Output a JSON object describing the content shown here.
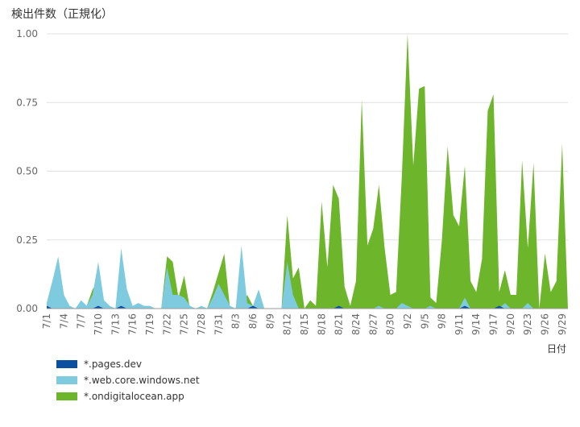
{
  "chart_data": {
    "type": "area",
    "title": "検出件数（正規化）",
    "x_label": "日付",
    "categories": [
      "7/1",
      null,
      null,
      "7/4",
      null,
      null,
      "7/7",
      null,
      null,
      "7/10",
      null,
      null,
      "7/13",
      null,
      null,
      "7/16",
      null,
      null,
      "7/19",
      null,
      null,
      "7/22",
      null,
      null,
      "7/25",
      null,
      null,
      "7/28",
      null,
      null,
      "7/31",
      null,
      null,
      "8/3",
      null,
      null,
      "8/6",
      null,
      null,
      "8/9",
      null,
      null,
      "8/12",
      null,
      null,
      "8/15",
      null,
      null,
      "8/18",
      null,
      null,
      "8/21",
      null,
      null,
      "8/24",
      null,
      null,
      "8/27",
      null,
      null,
      "8/30",
      null,
      null,
      "9/2",
      null,
      null,
      "9/5",
      null,
      null,
      "9/8",
      null,
      null,
      "9/11",
      null,
      null,
      "9/14",
      null,
      null,
      "9/17",
      null,
      null,
      "9/20",
      null,
      null,
      "9/23",
      null,
      null,
      "9/26",
      null,
      null,
      "9/29",
      null
    ],
    "series": [
      {
        "name": "*.pages.dev",
        "color": "#0b4fa0",
        "values": [
          0.01,
          0,
          0,
          0,
          0,
          0,
          0,
          0,
          0,
          0.01,
          0,
          0,
          0,
          0.01,
          0,
          0,
          0,
          0,
          0,
          0,
          0,
          0,
          0,
          0,
          0,
          0,
          0,
          0,
          0,
          0,
          0,
          0,
          0,
          0,
          0,
          0,
          0.01,
          0,
          0,
          0,
          0,
          0,
          0,
          0,
          0,
          0,
          0,
          0,
          0,
          0,
          0,
          0.01,
          0,
          0,
          0,
          0,
          0,
          0,
          0,
          0,
          0,
          0,
          0,
          0,
          0,
          0,
          0,
          0,
          0,
          0,
          0,
          0,
          0,
          0.01,
          0,
          0,
          0,
          0,
          0,
          0.01,
          0,
          0,
          0,
          0,
          0,
          0,
          0,
          0,
          0,
          0,
          0,
          0
        ]
      },
      {
        "name": "*.web.core.windows.net",
        "color": "#7ecbe0",
        "values": [
          0.02,
          0.1,
          0.19,
          0.05,
          0.01,
          0,
          0.03,
          0.01,
          0.05,
          0.17,
          0.03,
          0.01,
          0,
          0.22,
          0.07,
          0.01,
          0.02,
          0.01,
          0.01,
          0,
          0,
          0.15,
          0.05,
          0.05,
          0.04,
          0.01,
          0,
          0.01,
          0,
          0.04,
          0.09,
          0.05,
          0.01,
          0,
          0.23,
          0.02,
          0.01,
          0.07,
          0,
          0,
          0,
          0,
          0.17,
          0.05,
          0,
          0,
          0,
          0,
          0,
          0,
          0,
          0,
          0,
          0,
          0,
          0,
          0,
          0,
          0.01,
          0,
          0,
          0,
          0.02,
          0.01,
          0,
          0,
          0,
          0.01,
          0,
          0,
          0,
          0,
          0,
          0.04,
          0,
          0,
          0,
          0,
          0,
          0,
          0.02,
          0,
          0,
          0,
          0.02,
          0,
          0,
          0,
          0,
          0,
          0,
          0
        ]
      },
      {
        "name": "*.ondigitalocean.app",
        "color": "#6db52b",
        "values": [
          0.02,
          0.1,
          0.18,
          0.05,
          0,
          0,
          0.02,
          0.01,
          0.07,
          0.1,
          0.02,
          0,
          0,
          0,
          0,
          0,
          0,
          0,
          0,
          0,
          0,
          0.19,
          0.17,
          0.04,
          0.12,
          0,
          0,
          0,
          0,
          0.06,
          0.13,
          0.2,
          0,
          0,
          0,
          0.05,
          0.01,
          0,
          0,
          0,
          0,
          0,
          0.34,
          0.11,
          0.15,
          0,
          0.03,
          0.01,
          0.39,
          0.15,
          0.45,
          0.4,
          0.08,
          0.01,
          0.1,
          0.76,
          0.23,
          0.29,
          0.45,
          0.22,
          0.05,
          0.06,
          0.48,
          1.0,
          0.52,
          0.8,
          0.81,
          0.04,
          0.02,
          0.25,
          0.59,
          0.34,
          0.3,
          0.52,
          0.1,
          0.06,
          0.18,
          0.72,
          0.78,
          0.06,
          0.14,
          0.05,
          0.05,
          0.54,
          0.22,
          0.53,
          0,
          0.2,
          0.06,
          0.1,
          0.6,
          0
        ]
      }
    ],
    "ylim": [
      0,
      1.0
    ],
    "yticks": [
      {
        "value": 0,
        "label": "0.00"
      },
      {
        "value": 0.25,
        "label": "0.25"
      },
      {
        "value": 0.5,
        "label": "0.50"
      },
      {
        "value": 0.75,
        "label": "0.75"
      },
      {
        "value": 1.0,
        "label": "1.00"
      }
    ],
    "grid": true,
    "legend": "bottom"
  }
}
